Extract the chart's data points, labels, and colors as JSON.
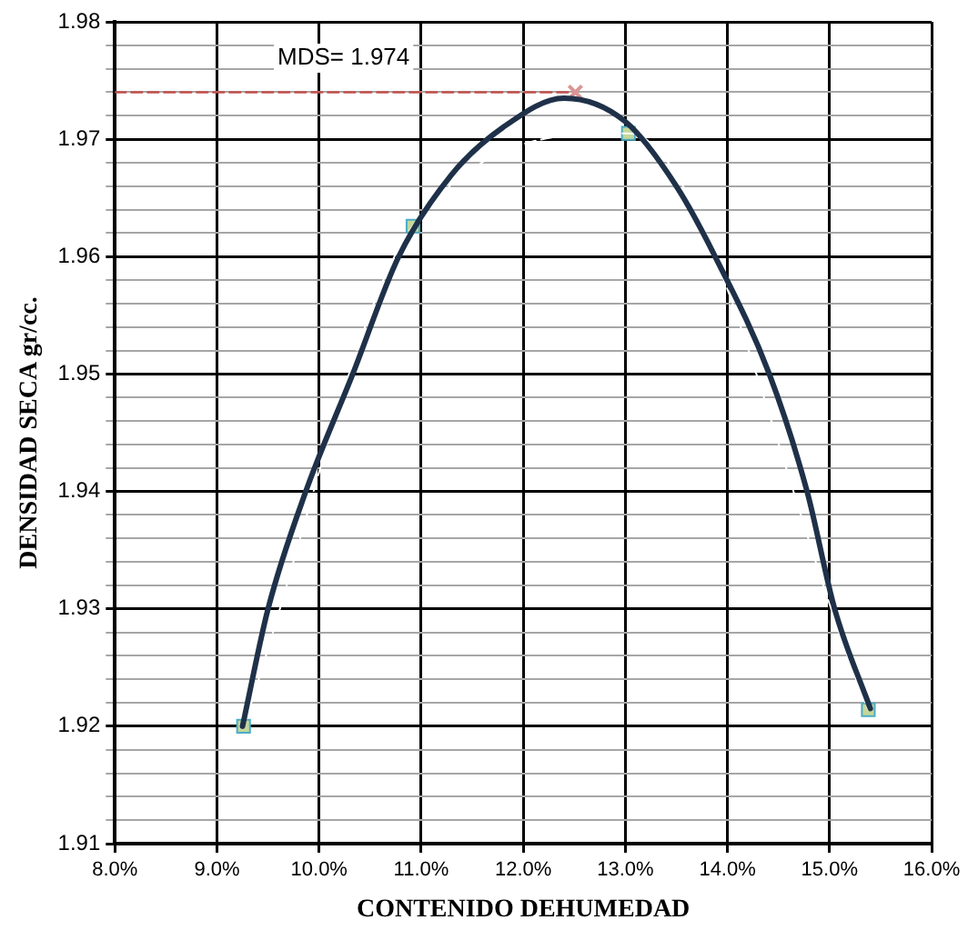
{
  "chart_data": {
    "type": "line",
    "xlabel": "CONTENIDO DEHUMEDAD",
    "ylabel": "DENSIDAD SECA gr/cc.",
    "annotations": [
      "MDS= 1.974"
    ],
    "series": [
      {
        "color": "#1f3149",
        "marker": "none",
        "line_style": "solid",
        "x": [
          9.25,
          9.5,
          9.87,
          10.33,
          10.78,
          11.3,
          11.8,
          12.4,
          13.0,
          13.5,
          13.88,
          14.41,
          14.78,
          15.05,
          15.4
        ],
        "values": [
          1.92,
          1.93,
          1.94,
          1.95,
          1.96,
          1.967,
          1.971,
          1.9735,
          1.9715,
          1.966,
          1.96,
          1.95,
          1.94,
          1.93,
          1.9215
        ]
      },
      {
        "color": "#ffffff",
        "marker": "none",
        "line_style": "dashed",
        "x": [
          9.26,
          10.92,
          13.03,
          15.38
        ],
        "values": [
          1.92,
          1.9626,
          1.9705,
          1.9214
        ]
      },
      {
        "type": "scatter",
        "color": "#c4d79b",
        "marker": "square",
        "x": [
          9.26,
          10.92,
          13.03,
          15.38
        ],
        "values": [
          1.92,
          1.9626,
          1.9705,
          1.9214
        ]
      },
      {
        "type": "scatter",
        "color": "#d99694",
        "marker": "cross",
        "x": [
          12.51
        ],
        "values": [
          1.974
        ]
      },
      {
        "color": "#c0504d",
        "marker": "none",
        "line_style": "dashed",
        "x": [
          8,
          12.51
        ],
        "values": [
          1.974,
          1.974
        ]
      }
    ],
    "xlim": [
      8,
      16
    ],
    "xticks": [
      {
        "value": 8,
        "label": "8.0%"
      },
      {
        "value": 9,
        "label": "9.0%"
      },
      {
        "value": 10,
        "label": "10.0%"
      },
      {
        "value": 11,
        "label": "11.0%"
      },
      {
        "value": 12,
        "label": "12.0%"
      },
      {
        "value": 13,
        "label": "13.0%"
      },
      {
        "value": 14,
        "label": "14.0%"
      },
      {
        "value": 15,
        "label": "15.0%"
      },
      {
        "value": 16,
        "label": "16.0%"
      }
    ],
    "ylim": [
      1.91,
      1.98
    ],
    "yticks": [
      1.91,
      {
        "value": 1.912,
        "label": null
      },
      {
        "value": 1.914,
        "label": null
      },
      {
        "value": 1.916,
        "label": null
      },
      {
        "value": 1.918,
        "label": null
      },
      1.92,
      {
        "value": 1.922,
        "label": null
      },
      {
        "value": 1.924,
        "label": null
      },
      {
        "value": 1.926,
        "label": null
      },
      {
        "value": 1.928,
        "label": null
      },
      1.93,
      {
        "value": 1.932,
        "label": null
      },
      {
        "value": 1.934,
        "label": null
      },
      {
        "value": 1.936,
        "label": null
      },
      {
        "value": 1.938,
        "label": null
      },
      1.94,
      {
        "value": 1.942,
        "label": null
      },
      {
        "value": 1.944,
        "label": null
      },
      {
        "value": 1.946,
        "label": null
      },
      {
        "value": 1.948,
        "label": null
      },
      1.95,
      {
        "value": 1.952,
        "label": null
      },
      {
        "value": 1.954,
        "label": null
      },
      {
        "value": 1.956,
        "label": null
      },
      {
        "value": 1.958,
        "label": null
      },
      1.96,
      {
        "value": 1.962,
        "label": null
      },
      {
        "value": 1.964,
        "label": null
      },
      {
        "value": 1.966,
        "label": null
      },
      {
        "value": 1.968,
        "label": null
      },
      1.97,
      {
        "value": 1.972,
        "label": null
      },
      {
        "value": 1.974,
        "label": null
      },
      {
        "value": 1.976,
        "label": null
      },
      {
        "value": 1.978,
        "label": null
      },
      1.98
    ],
    "grid": true,
    "legend": false
  }
}
